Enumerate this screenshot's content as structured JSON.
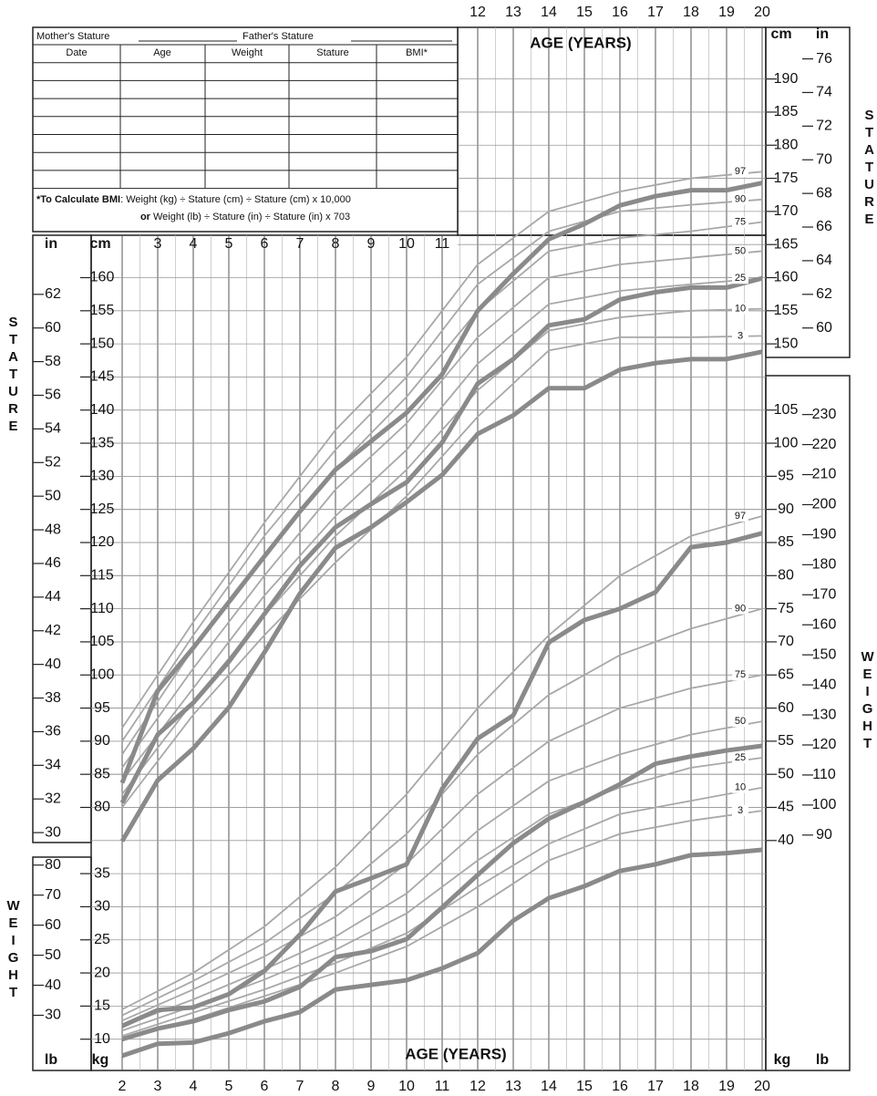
{
  "form": {
    "mother": "Mother's Stature",
    "father": "Father's Stature",
    "columns": [
      "Date",
      "Age",
      "Weight",
      "Stature",
      "BMI*"
    ],
    "note_bold": "*To Calculate BMI",
    "note": ": Weight (kg) ÷ Stature (cm) ÷ Stature (cm) x 10,000",
    "note2_bold": "or",
    "note2": " Weight (lb) ÷ Stature (in) ÷ Stature (in) x 703"
  },
  "chart_data": {
    "type": "line",
    "x_label": "AGE (YEARS)",
    "stature_label": "STATURE",
    "weight_label": "WEIGHT",
    "y_unit": "cm",
    "y_unit_alt": "in",
    "y2_unit": "kg",
    "y2_unit_alt": "lb",
    "xlim": [
      2,
      20
    ],
    "xticks_bottom": [
      2,
      3,
      4,
      5,
      6,
      7,
      8,
      9,
      10,
      11,
      12,
      13,
      14,
      15,
      16,
      17,
      18,
      19,
      20
    ],
    "xticks_top": [
      12,
      13,
      14,
      15,
      16,
      17,
      18,
      19,
      20
    ],
    "xticks_middle": [
      3,
      4,
      5,
      6,
      7,
      8,
      9,
      10,
      11
    ],
    "ylim": [
      40,
      200
    ],
    "yticks_left": [
      80,
      85,
      90,
      95,
      100,
      105,
      110,
      115,
      120,
      125,
      130,
      135,
      140,
      145,
      150,
      155,
      160
    ],
    "yticks_right": [
      150,
      155,
      160,
      165,
      170,
      175,
      180,
      185,
      190
    ],
    "y_alt_lim": [
      15.75,
      78.74
    ],
    "y_alt_ticks_left": [
      30,
      32,
      34,
      36,
      38,
      40,
      42,
      44,
      46,
      48,
      50,
      52,
      54,
      56,
      58,
      60,
      62
    ],
    "y_alt_ticks_right": [
      60,
      62,
      64,
      66,
      68,
      70,
      72,
      74,
      76
    ],
    "y2lim": [
      5,
      165
    ],
    "y2ticks_left": [
      10,
      15,
      20,
      25,
      30,
      35
    ],
    "y2ticks_right": [
      40,
      45,
      50,
      55,
      60,
      65,
      70,
      75,
      80,
      85,
      90,
      95,
      100,
      105
    ],
    "y2_alt_lim": [
      11.02,
      363.76
    ],
    "y2_alt_ticks_left": [
      30,
      40,
      50,
      60,
      70,
      80
    ],
    "y2_alt_ticks_right": [
      90,
      100,
      110,
      120,
      130,
      140,
      150,
      160,
      170,
      180,
      190,
      200,
      210,
      220,
      230
    ],
    "percentile_x": [
      2,
      4,
      6,
      8,
      10,
      12,
      14,
      16,
      18,
      20
    ],
    "series": [
      {
        "name": "97",
        "axis": "y",
        "color": "#a8a8a8",
        "values": [
          92,
          108,
          123,
          137,
          148,
          162,
          170,
          173,
          175,
          176
        ]
      },
      {
        "name": "90",
        "axis": "y",
        "color": "#a8a8a8",
        "values": [
          90,
          106,
          121,
          134,
          145,
          159,
          167,
          170,
          171,
          171.8
        ]
      },
      {
        "name": "75",
        "axis": "y",
        "color": "#a8a8a8",
        "values": [
          88,
          104,
          118,
          131,
          142,
          155,
          164,
          166,
          167,
          168.4
        ]
      },
      {
        "name": "50",
        "axis": "y",
        "color": "#a8a8a8",
        "values": [
          86,
          101,
          115,
          128,
          138,
          151,
          160,
          162,
          163,
          164
        ]
      },
      {
        "name": "25",
        "axis": "y",
        "color": "#a8a8a8",
        "values": [
          84,
          98,
          112,
          124,
          134,
          147,
          156,
          158,
          159,
          159.9
        ]
      },
      {
        "name": "10",
        "axis": "y",
        "color": "#a8a8a8",
        "values": [
          82,
          96,
          109,
          121,
          131,
          143,
          152,
          154,
          155,
          155.3
        ]
      },
      {
        "name": "3",
        "axis": "y",
        "color": "#a8a8a8",
        "values": [
          80,
          94,
          106,
          117,
          127,
          139,
          149,
          151,
          151,
          151.2
        ]
      },
      {
        "name": "97",
        "axis": "y2",
        "color": "#a8a8a8",
        "values": [
          14.5,
          20,
          27,
          36,
          47,
          60,
          71,
          80,
          86,
          89
        ]
      },
      {
        "name": "90",
        "axis": "y2",
        "color": "#a8a8a8",
        "values": [
          13.6,
          18.8,
          24.5,
          32,
          41,
          53,
          62,
          68,
          72,
          75
        ]
      },
      {
        "name": "75",
        "axis": "y2",
        "color": "#a8a8a8",
        "values": [
          12.8,
          17.5,
          22.5,
          28.5,
          36.5,
          47,
          55,
          60,
          63,
          65
        ]
      },
      {
        "name": "50",
        "axis": "y2",
        "color": "#a8a8a8",
        "values": [
          12,
          16,
          20.5,
          25.5,
          32,
          41.5,
          49,
          53,
          56,
          58
        ]
      },
      {
        "name": "25",
        "axis": "y2",
        "color": "#a8a8a8",
        "values": [
          11.3,
          15,
          19,
          23.5,
          29,
          37,
          44,
          48,
          51,
          52.5
        ]
      },
      {
        "name": "10",
        "axis": "y2",
        "color": "#a8a8a8",
        "values": [
          10.5,
          14,
          17.5,
          21.5,
          26,
          33,
          39.5,
          44,
          46,
          48
        ]
      },
      {
        "name": "3",
        "axis": "y2",
        "color": "#a8a8a8",
        "values": [
          10,
          13,
          16.5,
          20,
          24,
          30,
          37,
          41,
          43,
          44.5
        ]
      }
    ],
    "measurement_x": [
      2,
      3,
      4,
      5,
      6,
      7,
      8,
      9,
      10,
      11,
      12,
      13,
      14,
      15,
      16,
      17,
      18,
      19,
      20
    ],
    "measurement_color": "#8a8a8a",
    "measurements": [
      {
        "axis": "y",
        "values": [
          83.7,
          97.6,
          104.1,
          111,
          117.9,
          124.7,
          131,
          135.3,
          139.6,
          145.4,
          155,
          160.6,
          165.8,
          168.1,
          170.9,
          172.3,
          173.2,
          173.2,
          174.3
        ]
      },
      {
        "axis": "y",
        "values": [
          80.7,
          91,
          95.8,
          102,
          109.2,
          116.5,
          122.3,
          125.8,
          129.1,
          135.1,
          144,
          147.7,
          152.8,
          153.7,
          156.7,
          157.8,
          158.5,
          158.5,
          159.9
        ]
      },
      {
        "axis": "y",
        "values": [
          74.9,
          84.1,
          88.9,
          95.1,
          103.4,
          112.3,
          119.2,
          122.3,
          126.1,
          130.2,
          136.4,
          139.2,
          143.3,
          143.3,
          146.1,
          147.1,
          147.7,
          147.7,
          148.8
        ]
      },
      {
        "axis": "y2",
        "values": [
          12,
          14.4,
          14.8,
          16.8,
          20.3,
          25.8,
          32.3,
          34.3,
          36.4,
          47.8,
          55.4,
          58.9,
          69.9,
          73.3,
          75,
          77.5,
          84.3,
          85,
          86.4
        ]
      },
      {
        "axis": "y2",
        "values": [
          10,
          11.6,
          12.7,
          14.4,
          15.7,
          17.9,
          22.4,
          23.3,
          25.1,
          29.9,
          34.8,
          39.6,
          43.3,
          45.8,
          48.5,
          51.6,
          52.7,
          53.6,
          54.3
        ]
      },
      {
        "axis": "y2",
        "values": [
          7.5,
          9.3,
          9.5,
          10.9,
          12.7,
          14.1,
          17.5,
          18.2,
          18.9,
          20.7,
          23,
          27.9,
          31.3,
          33.1,
          35.4,
          36.4,
          37.8,
          38.1,
          38.6
        ]
      }
    ]
  }
}
